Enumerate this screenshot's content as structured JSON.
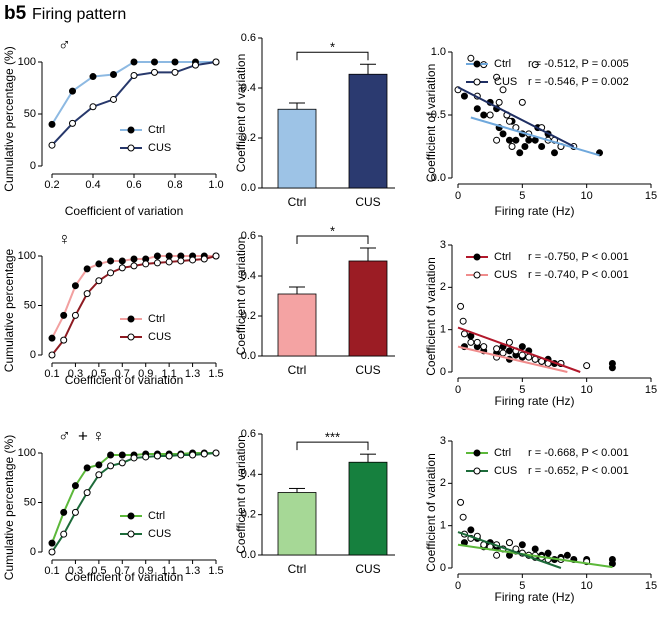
{
  "header": {
    "label": "b5",
    "title": "Firing pattern"
  },
  "chart_data": [
    {
      "type": "line",
      "annotation": [
        "♂"
      ],
      "xlabel": "Coefficient of variation",
      "ylabel": "Cumulative percentage (%)",
      "x": [
        0.2,
        0.3,
        0.4,
        0.5,
        0.6,
        0.7,
        0.8,
        0.9,
        1.0
      ],
      "xlim": [
        0.2,
        1.0
      ],
      "xticks": [
        0.2,
        0.4,
        0.6,
        0.8,
        {
          "value": 1,
          "label": "1.0"
        }
      ],
      "ylim": [
        0,
        100
      ],
      "yticks": [
        0,
        50,
        100
      ],
      "series": [
        {
          "name": "Ctrl",
          "color": "#8db9e2",
          "marker": "#000000",
          "values": [
            40,
            72,
            86,
            88,
            100,
            100,
            100,
            100,
            100
          ]
        },
        {
          "name": "CUS",
          "color": "#27386b",
          "marker": "#ffffff",
          "values": [
            20,
            41,
            57,
            64,
            87,
            90,
            90,
            97,
            100
          ]
        }
      ]
    },
    {
      "type": "bar",
      "ylabel": "Coefficient of variation",
      "categories": [
        "Ctrl",
        "CUS"
      ],
      "values": [
        0.315,
        0.455
      ],
      "errors": [
        0.025,
        0.04
      ],
      "colors": [
        "#9dc3e6",
        "#2b3a70"
      ],
      "ylim": [
        0,
        0.6
      ],
      "yticks": [
        {
          "value": 0,
          "label": "0.0"
        },
        0.2,
        0.4,
        0.6
      ],
      "significance": "*"
    },
    {
      "type": "scatter",
      "xlabel": "Firing rate (Hz)",
      "ylabel": "Coefficient of variation",
      "xlim": [
        0,
        15
      ],
      "xticks": [
        0,
        5,
        10,
        15
      ],
      "ylim": [
        0,
        1
      ],
      "yticks": [
        {
          "value": 0,
          "label": "0.0"
        },
        0.5,
        {
          "value": 1,
          "label": "1.0"
        }
      ],
      "series": [
        {
          "name": "Ctrl",
          "color": "#6fa8dc",
          "marker": "#000000",
          "stats": "r = -0.512, P = 0.005",
          "x": [
            0.5,
            1.5,
            2,
            2.5,
            3,
            3.2,
            3.5,
            3.8,
            4,
            4.2,
            4.5,
            4.8,
            5,
            5.2,
            5.5,
            6,
            6.2,
            6.5,
            7,
            7.5,
            8,
            11
          ],
          "y": [
            0.65,
            0.55,
            0.5,
            0.6,
            0.55,
            0.4,
            0.35,
            0.5,
            0.3,
            0.45,
            0.3,
            0.2,
            0.35,
            0.25,
            0.3,
            0.3,
            0.4,
            0.25,
            0.35,
            0.2,
            0.25,
            0.2
          ],
          "fit_x": [
            1,
            11
          ],
          "fit_y": [
            0.48,
            0.18
          ]
        },
        {
          "name": "CUS",
          "color": "#1f2f63",
          "marker": "#ffffff",
          "stats": "r = -0.546, P = 0.002",
          "x": [
            0,
            1,
            1.5,
            2,
            2.5,
            3,
            3,
            3.2,
            3.5,
            3.8,
            4,
            4.2,
            4.5,
            5,
            5.5,
            6,
            6.5,
            7,
            7.5,
            8,
            9
          ],
          "y": [
            0.7,
            0.95,
            0.65,
            0.9,
            0.5,
            0.8,
            0.3,
            0.6,
            0.7,
            0.5,
            0.45,
            0.25,
            0.4,
            0.6,
            0.35,
            0.9,
            0.4,
            0.3,
            0.3,
            0.25,
            0.25
          ],
          "fit_x": [
            0,
            9
          ],
          "fit_y": [
            0.72,
            0.25
          ]
        }
      ]
    },
    {
      "type": "line",
      "annotation": [
        "♀"
      ],
      "xlabel": "Coefficient of variation",
      "ylabel": "Cumulative percentage",
      "x": [
        0.1,
        0.2,
        0.3,
        0.4,
        0.5,
        0.6,
        0.7,
        0.8,
        0.9,
        1.0,
        1.1,
        1.2,
        1.3,
        1.4,
        1.5
      ],
      "xlim": [
        0.1,
        1.5
      ],
      "xticks": [
        0.1,
        0.3,
        0.5,
        0.7,
        0.9,
        1.1,
        1.3,
        1.5
      ],
      "ylim": [
        0,
        100
      ],
      "yticks": [
        0,
        50,
        100
      ],
      "series": [
        {
          "name": "Ctrl",
          "color": "#f2a0a0",
          "marker": "#000000",
          "values": [
            17,
            40,
            70,
            87,
            92,
            95,
            95,
            97,
            97,
            100,
            100,
            100,
            100,
            100,
            100
          ]
        },
        {
          "name": "CUS",
          "color": "#8e1b22",
          "marker": "#ffffff",
          "values": [
            0,
            15,
            40,
            62,
            75,
            83,
            88,
            90,
            92,
            93,
            94,
            95,
            96,
            97,
            100
          ]
        }
      ]
    },
    {
      "type": "bar",
      "ylabel": "Coefficient of variation",
      "categories": [
        "Ctrl",
        "CUS"
      ],
      "values": [
        0.31,
        0.475
      ],
      "errors": [
        0.035,
        0.065
      ],
      "colors": [
        "#f4a3a3",
        "#9b1c24"
      ],
      "ylim": [
        0,
        0.6
      ],
      "yticks": [
        {
          "value": 0,
          "label": "0.0"
        },
        0.2,
        0.4,
        0.6
      ],
      "significance": "*"
    },
    {
      "type": "scatter",
      "xlabel": "Firing rate (Hz)",
      "ylabel": "Coefficient of variation",
      "xlim": [
        0,
        15
      ],
      "xticks": [
        0,
        5,
        10,
        15
      ],
      "ylim": [
        0,
        3
      ],
      "yticks": [
        0,
        1,
        2,
        3
      ],
      "series": [
        {
          "name": "Ctrl",
          "color": "#b2182b",
          "marker": "#000000",
          "stats": "r = -0.750, P < 0.001",
          "x": [
            0.5,
            1,
            1.5,
            2,
            3,
            3.5,
            4,
            4,
            4.5,
            5,
            5,
            5.5,
            6,
            6.5,
            7,
            7.5,
            8,
            12,
            12
          ],
          "y": [
            0.6,
            0.85,
            0.6,
            0.5,
            0.45,
            0.6,
            0.5,
            0.3,
            0.4,
            0.35,
            0.6,
            0.5,
            0.3,
            0.25,
            0.3,
            0.2,
            0.2,
            0.2,
            0.1
          ],
          "fit_x": [
            0,
            9.5
          ],
          "fit_y": [
            1.05,
            0
          ]
        },
        {
          "name": "CUS",
          "color": "#f08c8c",
          "marker": "#ffffff",
          "stats": "r = -0.740, P < 0.001",
          "x": [
            0.2,
            0.4,
            0.5,
            1,
            1.5,
            2,
            3,
            3,
            3.5,
            4,
            4.5,
            5,
            5.5,
            6,
            6.5,
            7,
            8,
            10
          ],
          "y": [
            1.55,
            1.2,
            0.9,
            0.7,
            0.7,
            0.6,
            0.55,
            0.35,
            0.45,
            0.7,
            0.5,
            0.4,
            0.35,
            0.3,
            0.25,
            0.2,
            0.2,
            0.15
          ],
          "fit_x": [
            0,
            8.5
          ],
          "fit_y": [
            0.6,
            0
          ]
        }
      ]
    },
    {
      "type": "line",
      "annotation": [
        "♂",
        "+",
        "♀"
      ],
      "xlabel": "Coefficient of variation",
      "ylabel": "Cumulative percentage (%)",
      "x": [
        0.1,
        0.2,
        0.3,
        0.4,
        0.5,
        0.6,
        0.7,
        0.8,
        0.9,
        1.0,
        1.1,
        1.2,
        1.3,
        1.4,
        1.5
      ],
      "xlim": [
        0.1,
        1.5
      ],
      "xticks": [
        0.1,
        0.3,
        0.5,
        0.7,
        0.9,
        1.1,
        1.3,
        1.5
      ],
      "ylim": [
        0,
        100
      ],
      "yticks": [
        0,
        50,
        100
      ],
      "series": [
        {
          "name": "Ctrl",
          "color": "#5cb83a",
          "marker": "#000000",
          "values": [
            9,
            40,
            67,
            85,
            88,
            98,
            98,
            98,
            99,
            99,
            99,
            99,
            100,
            100,
            100
          ]
        },
        {
          "name": "CUS",
          "color": "#1d6b3a",
          "marker": "#ffffff",
          "values": [
            0,
            18,
            40,
            60,
            78,
            87,
            90,
            95,
            96,
            97,
            97,
            98,
            98,
            99,
            100
          ]
        }
      ]
    },
    {
      "type": "bar",
      "ylabel": "Coefficient of variation",
      "categories": [
        "Ctrl",
        "CUS"
      ],
      "values": [
        0.31,
        0.46
      ],
      "errors": [
        0.02,
        0.04
      ],
      "colors": [
        "#a6d896",
        "#16803e"
      ],
      "ylim": [
        0,
        0.6
      ],
      "yticks": [
        {
          "value": 0,
          "label": "0.0"
        },
        0.2,
        0.4,
        0.6
      ],
      "significance": "***"
    },
    {
      "type": "scatter",
      "xlabel": "Firing rate (Hz)",
      "ylabel": "Coefficient of variation",
      "xlim": [
        0,
        15
      ],
      "xticks": [
        0,
        5,
        10,
        15
      ],
      "ylim": [
        0,
        3
      ],
      "yticks": [
        0,
        1,
        2,
        3
      ],
      "series": [
        {
          "name": "Ctrl",
          "color": "#5cb83a",
          "marker": "#000000",
          "stats": "r = -0.668, P < 0.001",
          "x": [
            0.5,
            1,
            1.5,
            2,
            2.5,
            3,
            3.5,
            4,
            4,
            4.5,
            5,
            5,
            5.5,
            6,
            6,
            6.5,
            7,
            7.5,
            8,
            8.5,
            9,
            10,
            12,
            12
          ],
          "y": [
            0.6,
            0.9,
            0.7,
            0.5,
            0.6,
            0.5,
            0.45,
            0.3,
            0.6,
            0.4,
            0.35,
            0.55,
            0.3,
            0.25,
            0.45,
            0.3,
            0.35,
            0.2,
            0.25,
            0.3,
            0.2,
            0.2,
            0.2,
            0.1
          ],
          "fit_x": [
            0,
            12
          ],
          "fit_y": [
            0.55,
            0.02
          ]
        },
        {
          "name": "CUS",
          "color": "#1d6b3a",
          "marker": "#ffffff",
          "stats": "r = -0.652, P < 0.001",
          "x": [
            0.2,
            0.4,
            0.5,
            1,
            1.5,
            2,
            2.5,
            3,
            3,
            3.5,
            4,
            4.5,
            5,
            5.5,
            6,
            6.5,
            7,
            8,
            10
          ],
          "y": [
            1.55,
            1.2,
            0.8,
            0.7,
            0.75,
            0.55,
            0.5,
            0.55,
            0.3,
            0.45,
            0.6,
            0.45,
            0.35,
            0.3,
            0.3,
            0.25,
            0.2,
            0.2,
            0.15
          ],
          "fit_x": [
            0,
            8
          ],
          "fit_y": [
            0.85,
            0
          ]
        }
      ]
    }
  ]
}
